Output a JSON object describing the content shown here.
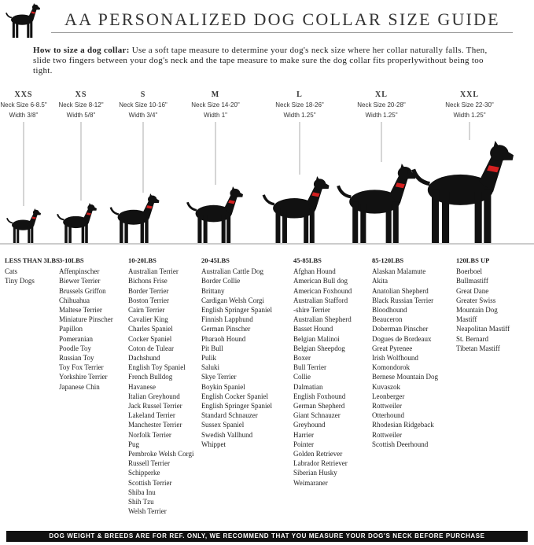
{
  "header": {
    "title": "AA PERSONALIZED DOG COLLAR SIZE GUIDE"
  },
  "intro": {
    "label": "How to size a dog collar:",
    "text": "Use a soft tape measure to determine your dog's neck size where her collar naturally falls. Then, slide two fingers between your dog's neck and the tape measure to make sure the dog collar fits properlywithout being too tight."
  },
  "sizes": [
    {
      "name": "XXS",
      "neck": "Neck Size 6-8.5\"",
      "width": "Width 3/8\""
    },
    {
      "name": "XS",
      "neck": "Neck Size 8-12\"",
      "width": "Width 5/8\""
    },
    {
      "name": "S",
      "neck": "Neck Size 10-16\"",
      "width": "Width 3/4\""
    },
    {
      "name": "M",
      "neck": "Neck Size 14-20\"",
      "width": "Width 1\""
    },
    {
      "name": "L",
      "neck": "Neck Size 18-26\"",
      "width": "Width 1.25\""
    },
    {
      "name": "XL",
      "neck": "Neck Size 20-28\"",
      "width": "Width 1.25\""
    },
    {
      "name": "XXL",
      "neck": "Neck Size 22-30\"",
      "width": "Width 1.25\""
    }
  ],
  "groups": [
    {
      "weight": "LESS THAN 3LBS",
      "breeds": [
        "Cats",
        "Tiny Dogs"
      ]
    },
    {
      "weight": "3-10LBS",
      "breeds": [
        "Affenpinscher",
        "Biewer Terrier",
        "Brussels Griffon",
        "Chihuahua",
        "Maltese Terrier",
        "Miniature Pinscher",
        "Papillon",
        "Pomeranian",
        "Poodle Toy",
        "Russian Toy",
        "Toy Fox Terrier",
        "Yorkshire Terrier",
        "Japanese Chin"
      ]
    },
    {
      "weight": "10-20LBS",
      "breeds": [
        "Australian Terrier",
        "Bichons Frise",
        "Border Terrier",
        "Boston Terrier",
        "Cairn Terrier",
        "Cavalier King",
        "Charles Spaniel",
        "Cocker Spaniel",
        "Coton de Tulear",
        "Dachshund",
        "English Toy Spaniel",
        "French Bulldog",
        "Havanese",
        "Italian Greyhound",
        "Jack Russel Terrier",
        "Lakeland Terrier",
        "Manchester Terrier",
        "Norfolk Terrier",
        "Pug",
        "Pembroke Welsh Corgi",
        "Russell Terrier",
        "Schipperke",
        "Scottish Terrier",
        "Shiba Inu",
        "Shih Tzu",
        "Welsh Terrier"
      ]
    },
    {
      "weight": "20-45LBS",
      "breeds": [
        "Australian Cattle Dog",
        "Border Collie",
        "Brittany",
        "Cardigan Welsh Corgi",
        "English Springer Spaniel",
        "Finnish Lapphund",
        "German Pinscher",
        "Pharaoh Hound",
        "Pit Bull",
        "Pulik",
        "Saluki",
        "Skye Terrier",
        "Boykin Spaniel",
        "English Cocker Spaniel",
        "English Springer Spaniel",
        "Standard Schnauzer",
        "Sussex Spaniel",
        "Swedish Vallhund",
        "Whippet"
      ]
    },
    {
      "weight": "45-85LBS",
      "breeds": [
        "Afghan Hound",
        "American Bull dog",
        "American Foxhound",
        "Australian Stafford",
        "-shire Terrier",
        "Australian Shepherd",
        "Basset Hound",
        "Belgian Malinoi",
        "Belgian Sheepdog",
        "Boxer",
        "Bull Terrier",
        "Collie",
        "Dalmatian",
        "English Foxhound",
        "German Shepherd",
        "Giant Schnauzer",
        "Greyhound",
        "Harrier",
        "Pointer",
        "Golden Retriever",
        "Labrador Retriever",
        "Siberian Husky",
        "Weimaraner"
      ]
    },
    {
      "weight": "85-120LBS",
      "breeds": [
        "Alaskan Malamute",
        "Akita",
        "Anatolian Shepherd",
        "Black Russian Terrier",
        "Bloodhound",
        "Beauceron",
        "Doberman Pinscher",
        "Dogues de Bordeaux",
        "Great Pyrenee",
        "Irish Wolfhound",
        "Komondorok",
        "Bernese Mountain Dog",
        "Kuvaszok",
        "Leonberger",
        "Rottweiler",
        "Otterhound",
        "Rhodesian Ridgeback",
        "Rottweiler",
        "Scottish Deerhound"
      ]
    },
    {
      "weight": "120LBS UP",
      "breeds": [
        "Boerboel",
        "Bullmastiff",
        "Great Dane",
        "Greater Swiss",
        "Mountain Dog",
        "Mastiff",
        "Neapolitan Mastiff",
        "St. Bernard",
        "Tibetan Mastiff"
      ]
    }
  ],
  "footer": {
    "text": "DOG WEIGHT & BREEDS ARE FOR REF. ONLY, WE RECOMMEND THAT YOU MEASURE YOUR DOG'S NECK BEFORE PURCHASE"
  }
}
